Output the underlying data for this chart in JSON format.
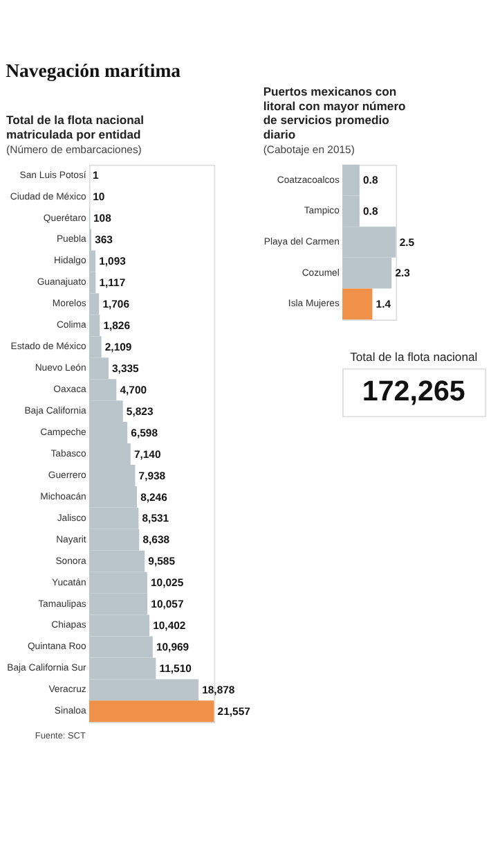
{
  "chart_data": [
    {
      "type": "other",
      "title": "Navegación marítima"
    },
    {
      "type": "bar",
      "orientation": "horizontal",
      "title": "Total de la flota nacional matriculada por entidad",
      "subtitle": "(Número de embarcaciones)",
      "value_labels": [
        "1",
        "10",
        "108",
        "363",
        "1,093",
        "1,117",
        "1,706",
        "1,826",
        "2,109",
        "3,335",
        "4,700",
        "5,823",
        "6,598",
        "7,140",
        "7,938",
        "8,246",
        "8,531",
        "8,638",
        "9,585",
        "10,025",
        "10,057",
        "10,402",
        "10,969",
        "11,510",
        "18,878",
        "21,557"
      ],
      "annotations": [
        "Fuente: SCT"
      ],
      "categories": [
        "San Luis Potosí",
        "Ciudad de México",
        "Querétaro",
        "Puebla",
        "Hidalgo",
        "Guanajuato",
        "Morelos",
        "Colima",
        "Estado de México",
        "Nuevo León",
        "Oaxaca",
        "Baja California",
        "Campeche",
        "Tabasco",
        "Guerrero",
        "Michoacán",
        "Jalisco",
        "Nayarit",
        "Sonora",
        "Yucatán",
        "Tamaulipas",
        "Chiapas",
        "Quintana Roo",
        "Baja California Sur",
        "Veracruz",
        "Sinaloa"
      ],
      "values": [
        1,
        10,
        108,
        363,
        1093,
        1117,
        1706,
        1826,
        2109,
        3335,
        4700,
        5823,
        6598,
        7140,
        7938,
        8246,
        8531,
        8638,
        9585,
        10025,
        10057,
        10402,
        10969,
        11510,
        18878,
        21557
      ],
      "colors": [
        "#b9c4cb",
        "#b9c4cb",
        "#b9c4cb",
        "#b9c4cb",
        "#b9c4cb",
        "#b9c4cb",
        "#b9c4cb",
        "#b9c4cb",
        "#b9c4cb",
        "#b9c4cb",
        "#b9c4cb",
        "#b9c4cb",
        "#b9c4cb",
        "#b9c4cb",
        "#b9c4cb",
        "#b9c4cb",
        "#b9c4cb",
        "#b9c4cb",
        "#b9c4cb",
        "#b9c4cb",
        "#b9c4cb",
        "#b9c4cb",
        "#b9c4cb",
        "#b9c4cb",
        "#b9c4cb",
        "#f0914a"
      ]
    },
    {
      "type": "bar",
      "orientation": "horizontal",
      "title": "Puertos mexicanos con litoral con mayor número de servicios promedio diario",
      "subtitle": "(Cabotaje en 2015)",
      "data_labels": true,
      "categories": [
        "Coatzacoalcos",
        "Tampico",
        "Playa del Carmen",
        "Cozumel",
        "Isla Mujeres"
      ],
      "values": [
        0.8,
        0.8,
        2.5,
        2.3,
        1.4
      ],
      "colors": [
        "#b9c4cb",
        "#b9c4cb",
        "#b9c4cb",
        "#b9c4cb",
        "#f0914a"
      ]
    },
    {
      "type": "other",
      "title": "Total de la flota nacional",
      "annotations": [
        "172,265"
      ]
    }
  ]
}
